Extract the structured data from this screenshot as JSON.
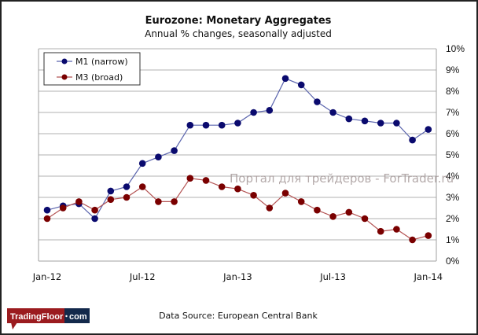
{
  "chart_data": {
    "type": "line",
    "title": "Eurozone: Monetary Aggregates",
    "subtitle": "Annual  % changes, seasonally  adjusted",
    "xlabel": "",
    "ylabel": "",
    "x": [
      "Jan-12",
      "Feb-12",
      "Mar-12",
      "Apr-12",
      "May-12",
      "Jun-12",
      "Jul-12",
      "Aug-12",
      "Sep-12",
      "Oct-12",
      "Nov-12",
      "Dec-12",
      "Jan-13",
      "Feb-13",
      "Mar-13",
      "Apr-13",
      "May-13",
      "Jun-13",
      "Jul-13",
      "Aug-13",
      "Sep-13",
      "Oct-13",
      "Nov-13",
      "Dec-13",
      "Jan-14"
    ],
    "x_tick_labels": [
      "Jan-12",
      "Jul-12",
      "Jan-13",
      "Jul-13",
      "Jan-14"
    ],
    "x_tick_indices": [
      0,
      6,
      12,
      18,
      24
    ],
    "y_tick_labels": [
      "0%",
      "1%",
      "2%",
      "3%",
      "4%",
      "5%",
      "6%",
      "7%",
      "8%",
      "9%",
      "10%"
    ],
    "ylim": [
      0,
      10
    ],
    "y_axis_side": "right",
    "grid": true,
    "legend_position": "top-left",
    "series": [
      {
        "name": "M1 (narrow)",
        "color": "#0a0a6e",
        "line_color": "#5a64ad",
        "values": [
          2.4,
          2.6,
          2.7,
          2.0,
          3.3,
          3.5,
          4.6,
          4.9,
          5.2,
          6.4,
          6.4,
          6.4,
          6.5,
          7.0,
          7.1,
          8.6,
          8.3,
          7.5,
          7.0,
          6.7,
          6.6,
          6.5,
          6.5,
          5.7,
          6.2
        ]
      },
      {
        "name": "M3 (broad)",
        "color": "#7a0000",
        "line_color": "#b45454",
        "values": [
          2.0,
          2.5,
          2.8,
          2.4,
          2.9,
          3.0,
          3.5,
          2.8,
          2.8,
          3.9,
          3.8,
          3.5,
          3.4,
          3.1,
          2.5,
          3.2,
          2.8,
          2.4,
          2.1,
          2.3,
          2.0,
          1.4,
          1.5,
          1.0,
          1.2
        ]
      }
    ],
    "source": "Data Source: European Central Bank"
  },
  "watermark": "Портал для трейдеров - ForTrader.ru",
  "logo": {
    "left": "TradingFloor",
    "right": "com",
    "left_color": "#9b1b1f",
    "right_color": "#13294b"
  }
}
